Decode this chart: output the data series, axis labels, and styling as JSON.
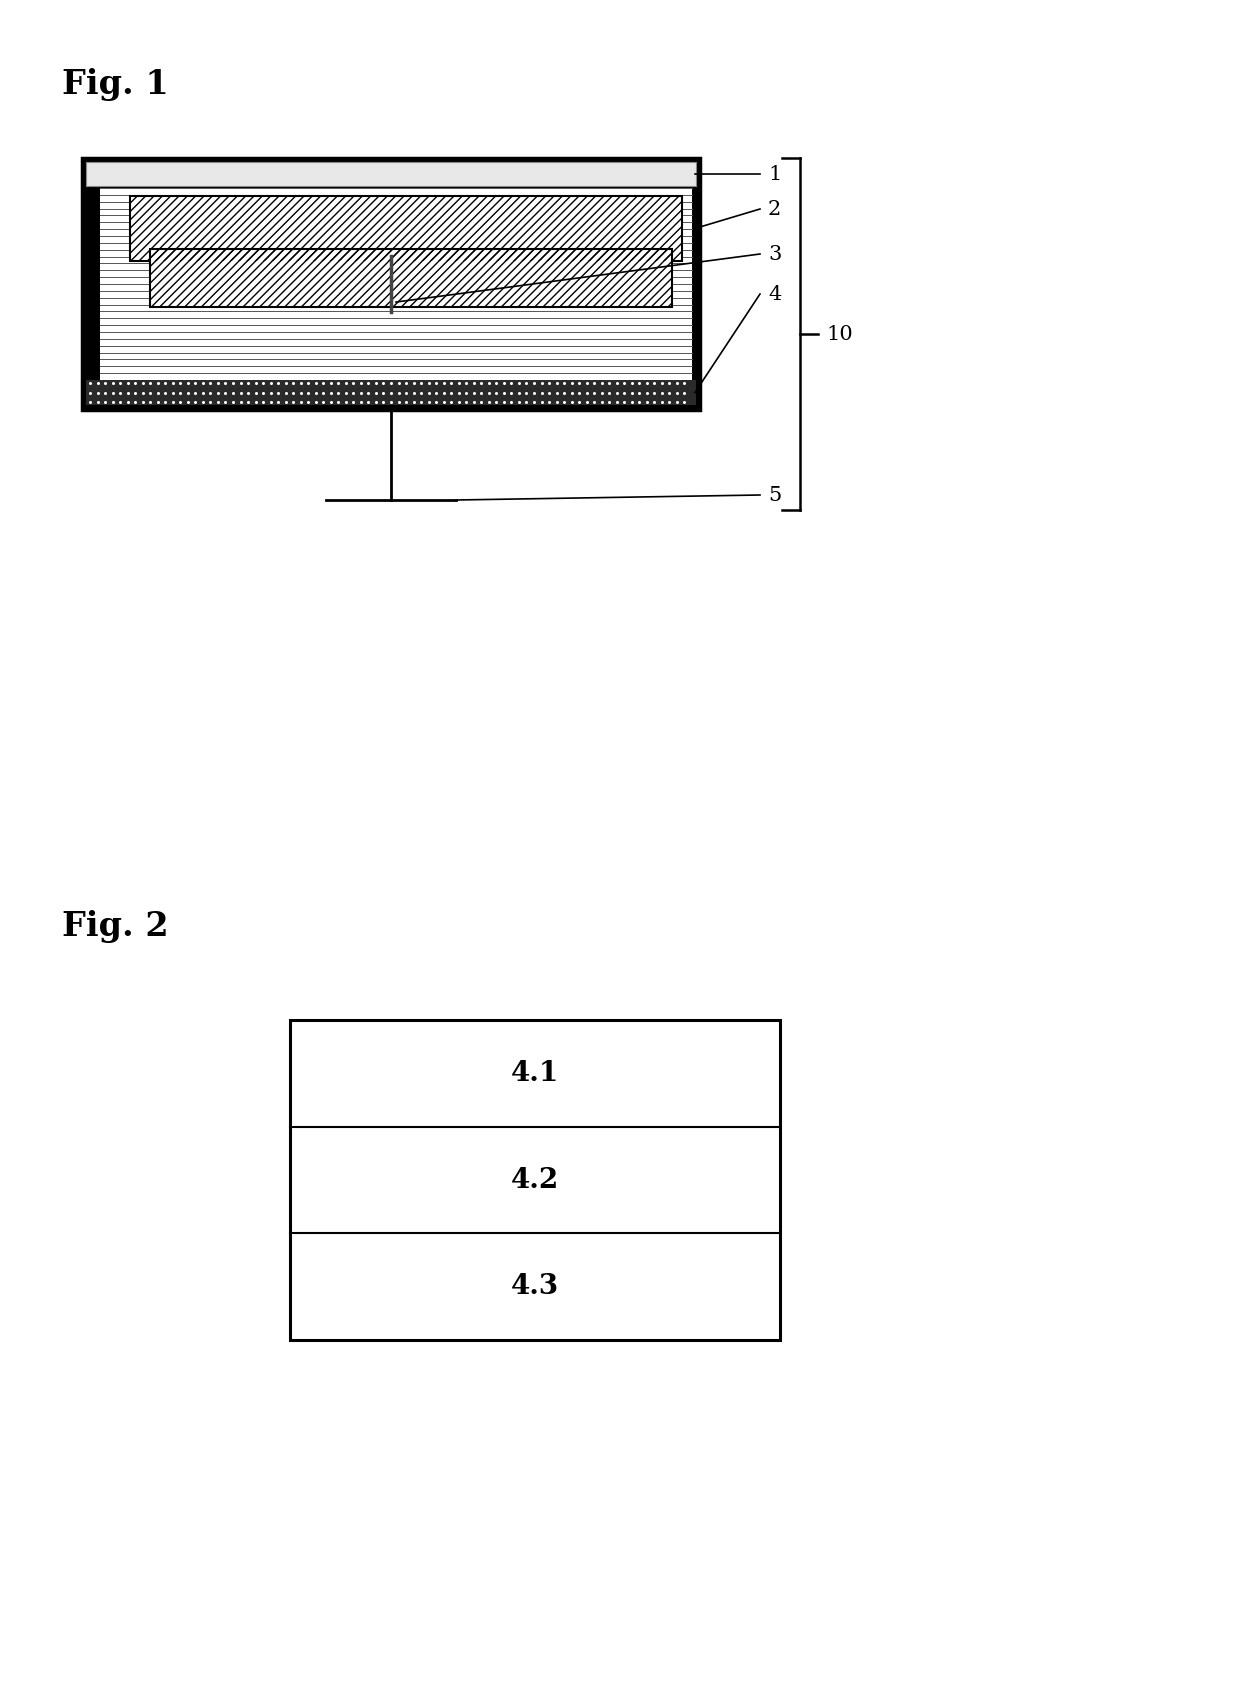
{
  "fig1_label": "Fig. 1",
  "fig2_label": "Fig. 2",
  "background_color": "#ffffff",
  "fig1": {
    "layer1_label": "1",
    "layer2_label": "2",
    "layer3_label": "3",
    "layer4_label": "4",
    "layer5_label": "5",
    "label10": "10"
  },
  "fig2": {
    "label41": "4.1",
    "label42": "4.2",
    "label43": "4.3"
  }
}
